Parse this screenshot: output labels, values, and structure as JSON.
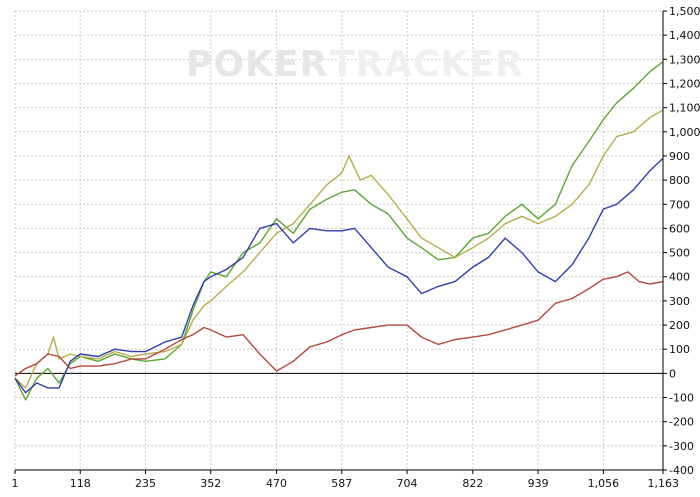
{
  "watermark": {
    "part1": "POKER",
    "part2": "TRACKER"
  },
  "chart_data": {
    "type": "line",
    "title": "",
    "xlabel": "",
    "ylabel": "",
    "xlim": [
      1,
      1163
    ],
    "ylim": [
      -400,
      1500
    ],
    "x_ticks": [
      1,
      118,
      235,
      352,
      470,
      587,
      704,
      822,
      939,
      1056,
      1163
    ],
    "x_tick_labels": [
      "1",
      "118",
      "235",
      "352",
      "470",
      "587",
      "704",
      "822",
      "939",
      "1,056",
      "1,163"
    ],
    "y_ticks": [
      1500,
      1400,
      1300,
      1200,
      1100,
      1000,
      900,
      800,
      700,
      600,
      500,
      400,
      300,
      200,
      100,
      0,
      -100,
      -200,
      -300,
      -400
    ],
    "y_tick_labels": [
      "1,500",
      "1,400",
      "1,300",
      "1,200",
      "1,100",
      "1,000",
      "900",
      "800",
      "700",
      "600",
      "500",
      "400",
      "300",
      "200",
      "100",
      "0",
      "-100",
      "-200",
      "-300",
      "-400"
    ],
    "y_axis_side": "right",
    "grid": true,
    "zero_line": true,
    "series": [
      {
        "color": "#5aa832",
        "points": [
          [
            1,
            -20
          ],
          [
            20,
            -110
          ],
          [
            40,
            -20
          ],
          [
            60,
            20
          ],
          [
            80,
            -40
          ],
          [
            100,
            40
          ],
          [
            118,
            70
          ],
          [
            150,
            50
          ],
          [
            180,
            80
          ],
          [
            210,
            60
          ],
          [
            235,
            50
          ],
          [
            270,
            60
          ],
          [
            300,
            120
          ],
          [
            320,
            260
          ],
          [
            340,
            380
          ],
          [
            352,
            420
          ],
          [
            380,
            400
          ],
          [
            410,
            500
          ],
          [
            440,
            540
          ],
          [
            470,
            640
          ],
          [
            500,
            580
          ],
          [
            530,
            680
          ],
          [
            560,
            720
          ],
          [
            587,
            750
          ],
          [
            610,
            760
          ],
          [
            640,
            700
          ],
          [
            670,
            660
          ],
          [
            704,
            560
          ],
          [
            730,
            520
          ],
          [
            760,
            470
          ],
          [
            790,
            480
          ],
          [
            822,
            560
          ],
          [
            850,
            580
          ],
          [
            880,
            650
          ],
          [
            910,
            700
          ],
          [
            939,
            640
          ],
          [
            970,
            700
          ],
          [
            1000,
            860
          ],
          [
            1030,
            960
          ],
          [
            1056,
            1050
          ],
          [
            1080,
            1120
          ],
          [
            1110,
            1180
          ],
          [
            1140,
            1250
          ],
          [
            1163,
            1290
          ]
        ]
      },
      {
        "color": "#b8ac4a",
        "points": [
          [
            1,
            -20
          ],
          [
            20,
            -60
          ],
          [
            40,
            40
          ],
          [
            60,
            80
          ],
          [
            70,
            150
          ],
          [
            80,
            60
          ],
          [
            100,
            80
          ],
          [
            118,
            70
          ],
          [
            150,
            60
          ],
          [
            180,
            90
          ],
          [
            210,
            70
          ],
          [
            235,
            80
          ],
          [
            270,
            90
          ],
          [
            300,
            120
          ],
          [
            320,
            220
          ],
          [
            340,
            280
          ],
          [
            352,
            300
          ],
          [
            380,
            360
          ],
          [
            410,
            420
          ],
          [
            440,
            500
          ],
          [
            470,
            580
          ],
          [
            500,
            620
          ],
          [
            530,
            700
          ],
          [
            560,
            780
          ],
          [
            587,
            830
          ],
          [
            600,
            900
          ],
          [
            620,
            800
          ],
          [
            640,
            820
          ],
          [
            670,
            740
          ],
          [
            704,
            640
          ],
          [
            730,
            560
          ],
          [
            760,
            520
          ],
          [
            790,
            480
          ],
          [
            822,
            520
          ],
          [
            850,
            560
          ],
          [
            880,
            620
          ],
          [
            910,
            650
          ],
          [
            939,
            620
          ],
          [
            970,
            650
          ],
          [
            1000,
            700
          ],
          [
            1030,
            780
          ],
          [
            1056,
            900
          ],
          [
            1080,
            980
          ],
          [
            1110,
            1000
          ],
          [
            1140,
            1060
          ],
          [
            1163,
            1090
          ]
        ]
      },
      {
        "color": "#2f3fad",
        "points": [
          [
            1,
            -20
          ],
          [
            20,
            -80
          ],
          [
            40,
            -40
          ],
          [
            60,
            -60
          ],
          [
            80,
            -60
          ],
          [
            100,
            50
          ],
          [
            118,
            80
          ],
          [
            150,
            70
          ],
          [
            180,
            100
          ],
          [
            210,
            90
          ],
          [
            235,
            90
          ],
          [
            270,
            130
          ],
          [
            300,
            150
          ],
          [
            320,
            280
          ],
          [
            340,
            380
          ],
          [
            352,
            400
          ],
          [
            380,
            430
          ],
          [
            410,
            480
          ],
          [
            440,
            600
          ],
          [
            470,
            620
          ],
          [
            500,
            540
          ],
          [
            530,
            600
          ],
          [
            560,
            590
          ],
          [
            587,
            590
          ],
          [
            610,
            600
          ],
          [
            640,
            520
          ],
          [
            670,
            440
          ],
          [
            704,
            400
          ],
          [
            730,
            330
          ],
          [
            760,
            360
          ],
          [
            790,
            380
          ],
          [
            822,
            440
          ],
          [
            850,
            480
          ],
          [
            880,
            560
          ],
          [
            910,
            500
          ],
          [
            939,
            420
          ],
          [
            970,
            380
          ],
          [
            1000,
            450
          ],
          [
            1030,
            560
          ],
          [
            1056,
            680
          ],
          [
            1080,
            700
          ],
          [
            1110,
            760
          ],
          [
            1140,
            840
          ],
          [
            1163,
            890
          ]
        ]
      },
      {
        "color": "#b5473c",
        "points": [
          [
            1,
            -10
          ],
          [
            20,
            20
          ],
          [
            40,
            40
          ],
          [
            60,
            80
          ],
          [
            80,
            70
          ],
          [
            100,
            20
          ],
          [
            118,
            30
          ],
          [
            150,
            30
          ],
          [
            180,
            40
          ],
          [
            210,
            60
          ],
          [
            235,
            60
          ],
          [
            270,
            100
          ],
          [
            300,
            140
          ],
          [
            320,
            160
          ],
          [
            340,
            190
          ],
          [
            352,
            180
          ],
          [
            380,
            150
          ],
          [
            410,
            160
          ],
          [
            440,
            80
          ],
          [
            470,
            10
          ],
          [
            500,
            50
          ],
          [
            530,
            110
          ],
          [
            560,
            130
          ],
          [
            587,
            160
          ],
          [
            610,
            180
          ],
          [
            640,
            190
          ],
          [
            670,
            200
          ],
          [
            704,
            200
          ],
          [
            730,
            150
          ],
          [
            760,
            120
          ],
          [
            790,
            140
          ],
          [
            822,
            150
          ],
          [
            850,
            160
          ],
          [
            880,
            180
          ],
          [
            910,
            200
          ],
          [
            939,
            220
          ],
          [
            970,
            290
          ],
          [
            1000,
            310
          ],
          [
            1030,
            350
          ],
          [
            1056,
            390
          ],
          [
            1080,
            400
          ],
          [
            1100,
            420
          ],
          [
            1120,
            380
          ],
          [
            1140,
            370
          ],
          [
            1163,
            380
          ]
        ]
      }
    ]
  }
}
